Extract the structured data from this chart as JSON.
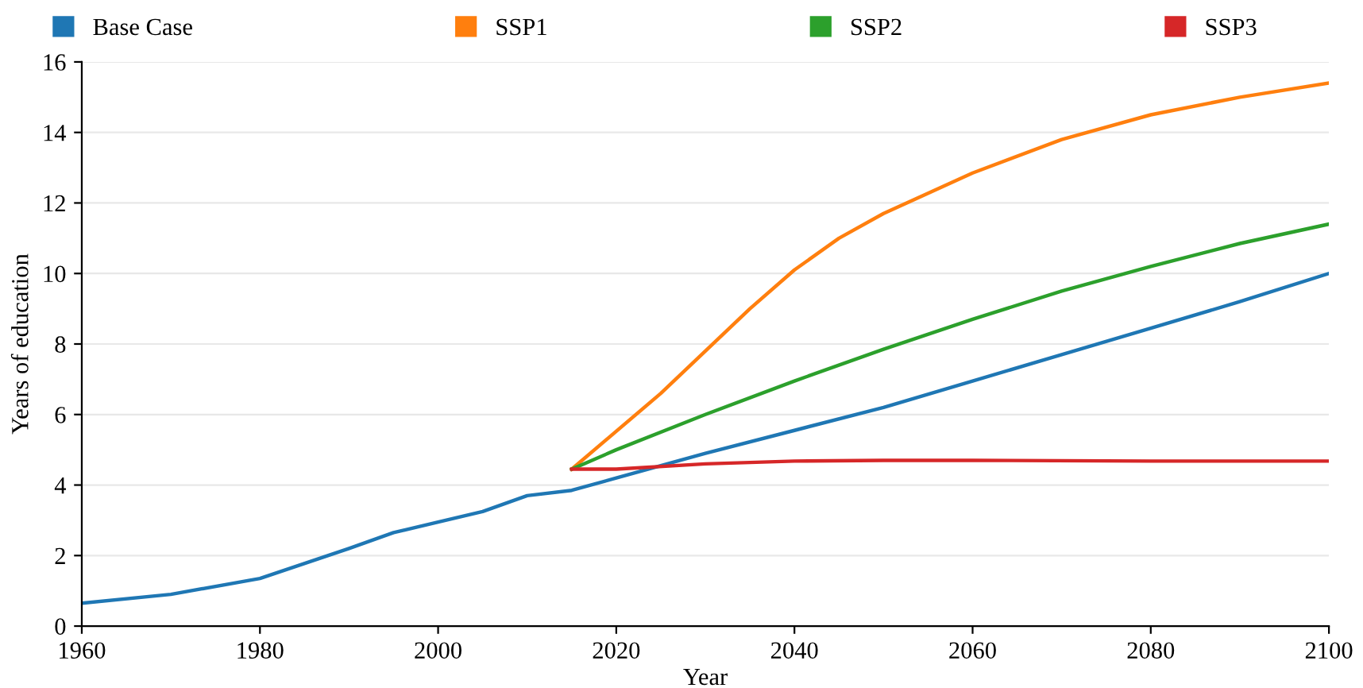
{
  "chart_data": {
    "type": "line",
    "xlabel": "Year",
    "ylabel": "Years of education",
    "xlim": [
      1960,
      2100
    ],
    "ylim": [
      0,
      16
    ],
    "xticks": [
      1960,
      1980,
      2000,
      2020,
      2040,
      2060,
      2080,
      2100
    ],
    "yticks": [
      0,
      2,
      4,
      6,
      8,
      10,
      12,
      14,
      16
    ],
    "grid": "y",
    "legend": "top",
    "marker": "none",
    "line_style": "solid",
    "series": [
      {
        "name": "Base Case",
        "color": "#1f77b4",
        "x": [
          1960,
          1970,
          1980,
          1990,
          1995,
          2000,
          2005,
          2010,
          2015,
          2020,
          2030,
          2040,
          2050,
          2060,
          2070,
          2080,
          2090,
          2100
        ],
        "values": [
          0.65,
          0.9,
          1.35,
          2.2,
          2.65,
          2.95,
          3.25,
          3.7,
          3.85,
          4.2,
          4.9,
          5.55,
          6.2,
          6.95,
          7.7,
          8.45,
          9.2,
          10.0
        ]
      },
      {
        "name": "SSP1",
        "color": "#ff7f0e",
        "x": [
          2015,
          2025,
          2030,
          2035,
          2040,
          2045,
          2050,
          2060,
          2070,
          2080,
          2090,
          2100
        ],
        "values": [
          4.45,
          6.6,
          7.8,
          9.0,
          10.1,
          11.0,
          11.7,
          12.85,
          13.8,
          14.5,
          15.0,
          15.4
        ]
      },
      {
        "name": "SSP2",
        "color": "#2ca02c",
        "x": [
          2015,
          2020,
          2030,
          2040,
          2050,
          2060,
          2070,
          2080,
          2090,
          2100
        ],
        "values": [
          4.45,
          5.0,
          6.0,
          6.95,
          7.85,
          8.7,
          9.5,
          10.2,
          10.85,
          11.4
        ]
      },
      {
        "name": "SSP3",
        "color": "#d62728",
        "x": [
          2015,
          2020,
          2030,
          2040,
          2050,
          2060,
          2080,
          2100
        ],
        "values": [
          4.45,
          4.45,
          4.6,
          4.68,
          4.7,
          4.7,
          4.68,
          4.68
        ]
      }
    ]
  }
}
